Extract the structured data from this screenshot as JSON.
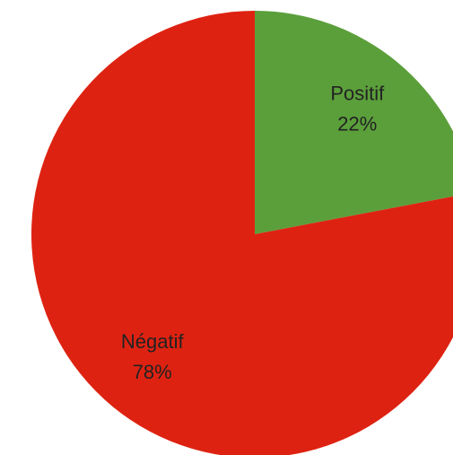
{
  "chart_data": {
    "type": "pie",
    "categories": [
      "Positif",
      "Négatif"
    ],
    "values": [
      22,
      78
    ],
    "value_labels": [
      "22%",
      "78%"
    ],
    "colors": [
      "#5b9f3b",
      "#de2211"
    ]
  }
}
